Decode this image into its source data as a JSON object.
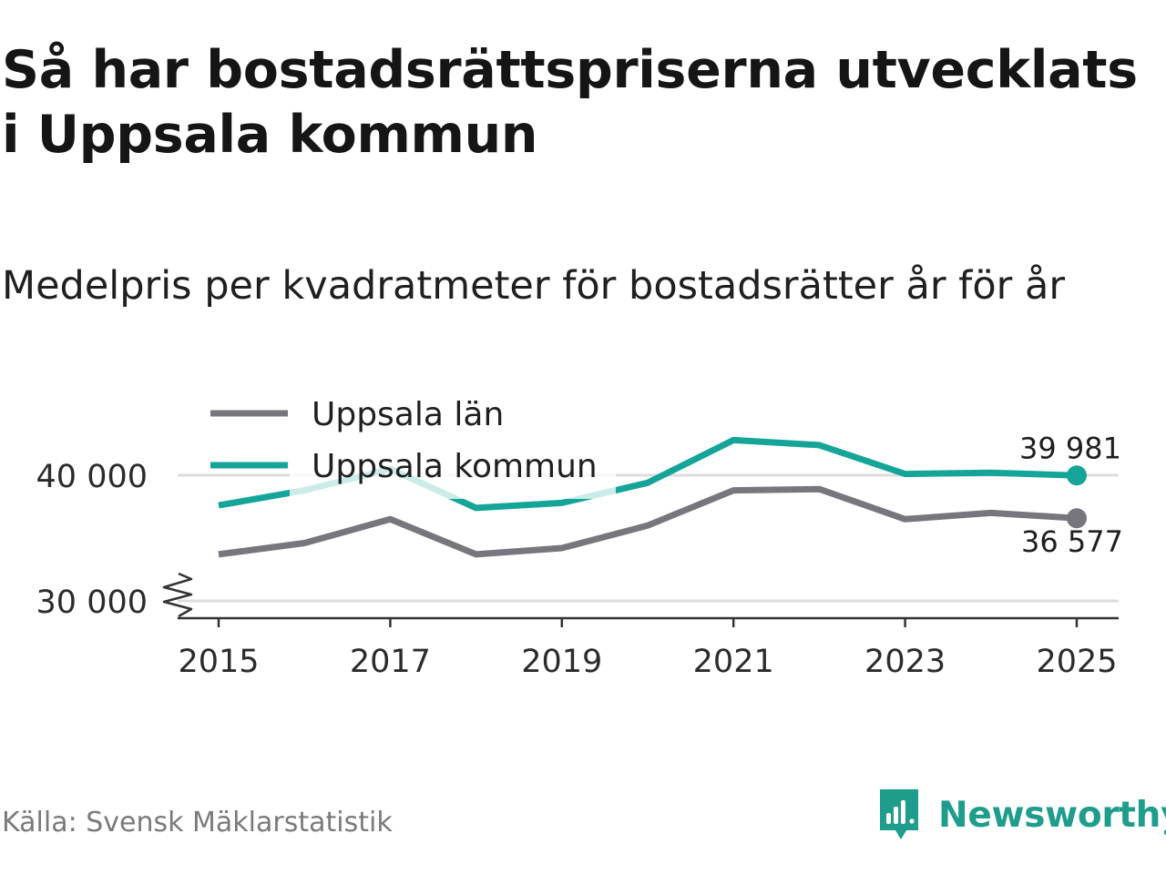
{
  "header": {
    "title": "Så har bostadsrättspriserna utvecklats i Uppsala kommun",
    "subtitle": "Medelpris per kvadratmeter för bostadsrätter år för år"
  },
  "footer": {
    "source": "Källa: Svensk Mäklarstatistik",
    "brand": "Newsworthy"
  },
  "colors": {
    "lan": "#76767c",
    "kommun": "#14a598",
    "grid": "#dddddd",
    "axis": "#333333",
    "brand": "#1f9d8c"
  },
  "chart_data": {
    "type": "line",
    "title": "Medelpris per kvadratmeter för bostadsrätter år för år",
    "xlabel": "",
    "ylabel": "",
    "x": [
      2015,
      2016,
      2017,
      2018,
      2019,
      2020,
      2021,
      2022,
      2023,
      2024,
      2025
    ],
    "x_ticks": [
      "2015",
      "2017",
      "2019",
      "2021",
      "2023",
      "2025"
    ],
    "y_ticks": [
      "30 000",
      "40 000"
    ],
    "ylim": [
      29000,
      43000
    ],
    "y_axis_break": true,
    "legend_position": "top-left",
    "series": [
      {
        "name": "Uppsala län",
        "color": "#76767c",
        "values": [
          33700,
          34600,
          36500,
          33700,
          34200,
          36000,
          38800,
          38900,
          36500,
          37000,
          36577
        ],
        "end_label": "36 577"
      },
      {
        "name": "Uppsala kommun",
        "color": "#14a598",
        "values": [
          37600,
          38800,
          40500,
          37400,
          37800,
          39400,
          42800,
          42400,
          40100,
          40200,
          39981
        ],
        "end_label": "39 981"
      }
    ]
  }
}
